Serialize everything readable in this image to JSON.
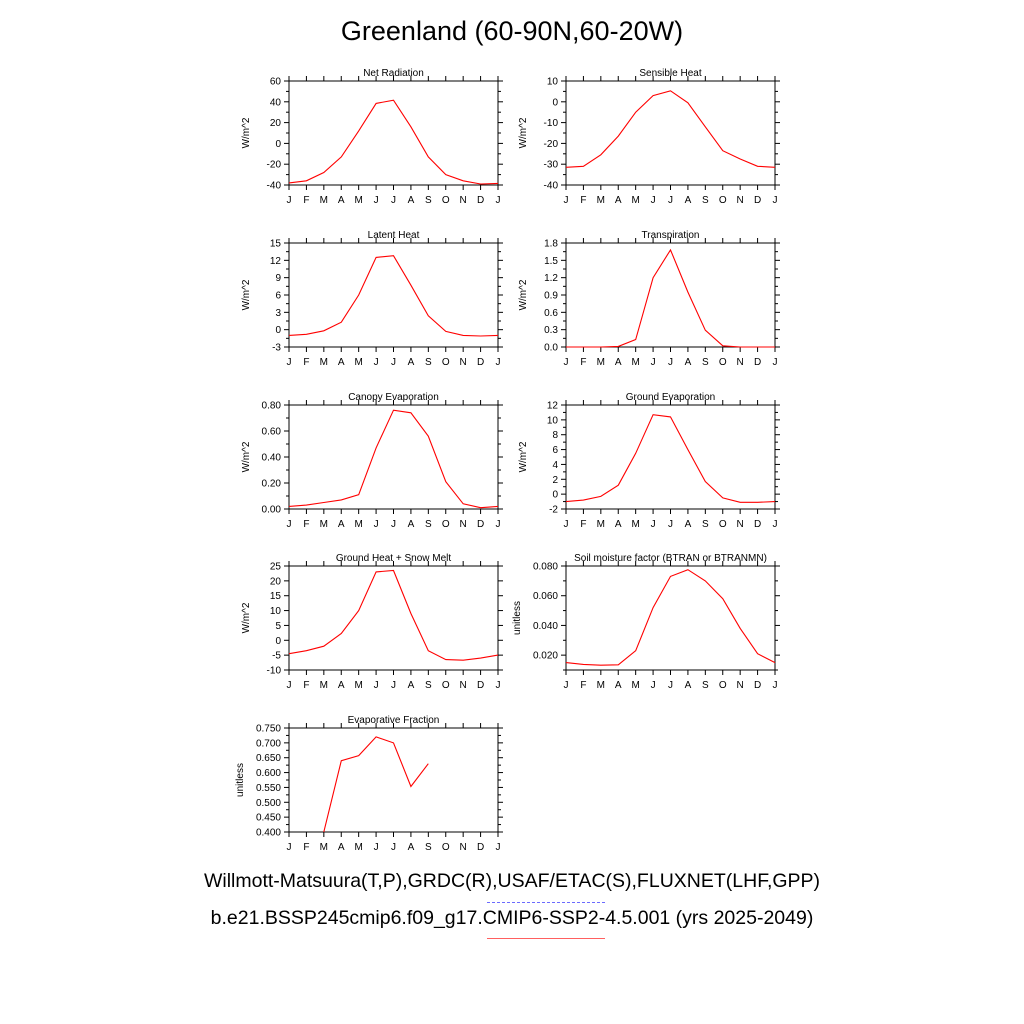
{
  "title": "Greenland (60-90N,60-20W)",
  "legend": {
    "obs_label": "Willmott-Matsuura(T,P),GRDC(R),USAF/ETAC(S),FLUXNET(LHF,GPP)",
    "model_label": "b.e21.BSSP245cmip6.f09_g17.CMIP6-SSP2-4.5.001 (yrs 2025-2049)",
    "obs_color": "#6b6bff",
    "model_color": "#ff0000"
  },
  "chart_data": [
    {
      "type": "line",
      "title": "Net Radiation",
      "ylabel": "W/m^2",
      "x": [
        "J",
        "F",
        "M",
        "A",
        "M",
        "J",
        "J",
        "A",
        "S",
        "O",
        "N",
        "D",
        "J"
      ],
      "ylim": [
        -40,
        60
      ],
      "yticks": [
        "-40",
        "-30",
        "-20",
        "-10",
        "0",
        "10",
        "20",
        "30",
        "40",
        "50",
        "60"
      ],
      "yticks_labeled": [
        "-40",
        "-20",
        "0",
        "20",
        "40",
        "60"
      ],
      "series": [
        {
          "values": [
            -38,
            -36,
            -28,
            -13,
            12,
            38.5,
            41.5,
            16,
            -13,
            -30,
            -36,
            -39,
            -38.5
          ]
        }
      ]
    },
    {
      "type": "line",
      "title": "Sensible Heat",
      "ylabel": "W/m^2",
      "x": [
        "J",
        "F",
        "M",
        "A",
        "M",
        "J",
        "J",
        "A",
        "S",
        "O",
        "N",
        "D",
        "J"
      ],
      "ylim": [
        -40,
        10
      ],
      "yticks": [
        "-40",
        "-35",
        "-30",
        "-25",
        "-20",
        "-15",
        "-10",
        "-5",
        "0",
        "5",
        "10"
      ],
      "yticks_labeled": [
        "-40",
        "-30",
        "-20",
        "-10",
        "0",
        "10"
      ],
      "series": [
        {
          "values": [
            -31.5,
            -31,
            -25.5,
            -16.5,
            -5,
            3,
            5.3,
            -0.5,
            -12,
            -23.5,
            -27.5,
            -31,
            -31.5
          ]
        }
      ]
    },
    {
      "type": "line",
      "title": "Latent Heat",
      "ylabel": "W/m^2",
      "x": [
        "J",
        "F",
        "M",
        "A",
        "M",
        "J",
        "J",
        "A",
        "S",
        "O",
        "N",
        "D",
        "J"
      ],
      "ylim": [
        -3,
        15
      ],
      "yticks": [
        "-3",
        "-1.5",
        "0",
        "1.5",
        "3",
        "4.5",
        "6",
        "7.5",
        "9",
        "10.5",
        "12",
        "13.5",
        "15"
      ],
      "yticks_labeled": [
        "-3",
        "0",
        "3",
        "6",
        "9",
        "12",
        "15"
      ],
      "series": [
        {
          "values": [
            -1,
            -0.8,
            -0.2,
            1.3,
            6,
            12.5,
            12.8,
            7.7,
            2.4,
            -0.3,
            -1,
            -1.1,
            -1
          ]
        }
      ]
    },
    {
      "type": "line",
      "title": "Transpiration",
      "ylabel": "W/m^2",
      "x": [
        "J",
        "F",
        "M",
        "A",
        "M",
        "J",
        "J",
        "A",
        "S",
        "O",
        "N",
        "D",
        "J"
      ],
      "ylim": [
        0,
        1.8
      ],
      "yticks": [
        "0.0",
        "0.15",
        "0.3",
        "0.45",
        "0.6",
        "0.75",
        "0.9",
        "1.05",
        "1.2",
        "1.35",
        "1.5",
        "1.65",
        "1.8"
      ],
      "yticks_labeled": [
        "0.0",
        "0.3",
        "0.6",
        "0.9",
        "1.2",
        "1.5",
        "1.8"
      ],
      "series": [
        {
          "values": [
            0,
            0,
            0,
            0.01,
            0.13,
            1.2,
            1.68,
            0.95,
            0.29,
            0.02,
            0,
            0,
            0
          ]
        }
      ]
    },
    {
      "type": "line",
      "title": "Canopy Evaporation",
      "ylabel": "W/m^2",
      "x": [
        "J",
        "F",
        "M",
        "A",
        "M",
        "J",
        "J",
        "A",
        "S",
        "O",
        "N",
        "D",
        "J"
      ],
      "ylim": [
        0,
        0.8
      ],
      "yticks": [
        "0.00",
        "0.10",
        "0.20",
        "0.30",
        "0.40",
        "0.50",
        "0.60",
        "0.70",
        "0.80"
      ],
      "yticks_labeled": [
        "0.00",
        "0.20",
        "0.40",
        "0.60",
        "0.80"
      ],
      "series": [
        {
          "values": [
            0.02,
            0.03,
            0.05,
            0.07,
            0.11,
            0.47,
            0.76,
            0.74,
            0.56,
            0.21,
            0.04,
            0.01,
            0.02
          ]
        }
      ]
    },
    {
      "type": "line",
      "title": "Ground Evaporation",
      "ylabel": "W/m^2",
      "x": [
        "J",
        "F",
        "M",
        "A",
        "M",
        "J",
        "J",
        "A",
        "S",
        "O",
        "N",
        "D",
        "J"
      ],
      "ylim": [
        -2,
        12
      ],
      "yticks": [
        "-2",
        "-1",
        "0",
        "1",
        "2",
        "3",
        "4",
        "5",
        "6",
        "7",
        "8",
        "9",
        "10",
        "11",
        "12"
      ],
      "yticks_labeled": [
        "-2",
        "0",
        "2",
        "4",
        "6",
        "8",
        "10",
        "12"
      ],
      "series": [
        {
          "values": [
            -1,
            -0.8,
            -0.3,
            1.2,
            5.5,
            10.7,
            10.4,
            6,
            1.7,
            -0.5,
            -1.1,
            -1.1,
            -1
          ]
        }
      ]
    },
    {
      "type": "line",
      "title": "Ground Heat + Snow Melt",
      "ylabel": "W/m^2",
      "x": [
        "J",
        "F",
        "M",
        "A",
        "M",
        "J",
        "J",
        "A",
        "S",
        "O",
        "N",
        "D",
        "J"
      ],
      "ylim": [
        -10,
        25
      ],
      "yticks": [
        "-10",
        "-5",
        "0",
        "5",
        "10",
        "15",
        "20",
        "25"
      ],
      "yticks_labeled": [
        "-10",
        "-5",
        "0",
        "5",
        "10",
        "15",
        "20",
        "25"
      ],
      "series": [
        {
          "values": [
            -4.5,
            -3.5,
            -2,
            2.3,
            10,
            23,
            23.5,
            9,
            -3.5,
            -6.5,
            -6.7,
            -6,
            -5
          ]
        }
      ]
    },
    {
      "type": "line",
      "title": "Soil moisture factor (BTRAN or BTRANMN)",
      "ylabel": "unitless",
      "x": [
        "J",
        "F",
        "M",
        "A",
        "M",
        "J",
        "J",
        "A",
        "S",
        "O",
        "N",
        "D",
        "J"
      ],
      "ylim": [
        0.01,
        0.08
      ],
      "yticks": [
        "0.010",
        "0.020",
        "0.030",
        "0.040",
        "0.050",
        "0.060",
        "0.070",
        "0.080"
      ],
      "yticks_labeled": [
        "0.020",
        "0.040",
        "0.060",
        "0.080"
      ],
      "series": [
        {
          "values": [
            0.015,
            0.0138,
            0.0132,
            0.0135,
            0.023,
            0.052,
            0.073,
            0.0775,
            0.07,
            0.058,
            0.038,
            0.021,
            0.015
          ]
        }
      ]
    },
    {
      "type": "line",
      "title": "Evaporative Fraction",
      "ylabel": "unitless",
      "x": [
        "J",
        "F",
        "M",
        "A",
        "M",
        "J",
        "J",
        "A",
        "S",
        "O",
        "N",
        "D",
        "J"
      ],
      "ylim": [
        0.4,
        0.75
      ],
      "yticks": [
        "0.400",
        "0.425",
        "0.450",
        "0.475",
        "0.500",
        "0.525",
        "0.550",
        "0.575",
        "0.600",
        "0.625",
        "0.650",
        "0.675",
        "0.700",
        "0.725",
        "0.750"
      ],
      "yticks_labeled": [
        "0.400",
        "0.450",
        "0.500",
        "0.550",
        "0.600",
        "0.650",
        "0.700",
        "0.750"
      ],
      "series": [
        {
          "values": [
            null,
            null,
            0.4,
            0.64,
            0.657,
            0.72,
            0.7,
            0.553,
            0.63,
            null,
            null,
            null,
            null
          ]
        }
      ]
    }
  ]
}
